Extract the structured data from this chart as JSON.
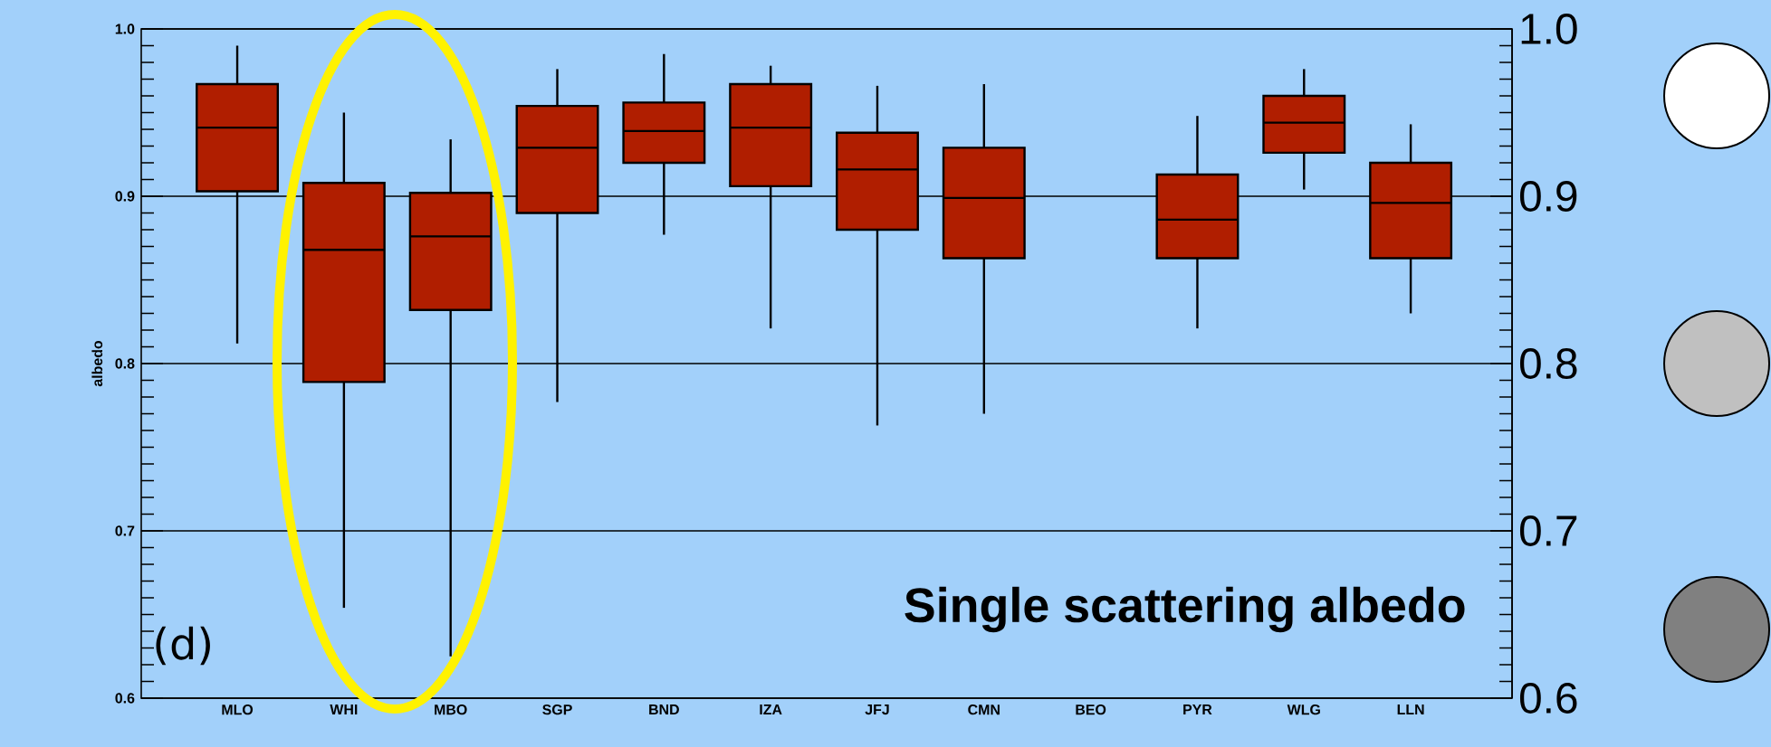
{
  "chart_data": {
    "type": "box",
    "ylabel": "albedo",
    "color": "#b01e00",
    "grid": "y",
    "categories": [
      "MLO",
      "WHI",
      "MBO",
      "SGP",
      "BND",
      "IZA",
      "JFJ",
      "CMN",
      "BEO",
      "PYR",
      "WLG",
      "LLN"
    ],
    "boxes": [
      {
        "low": 0.812,
        "q1": 0.903,
        "median": 0.941,
        "q3": 0.967,
        "high": 0.99
      },
      {
        "low": 0.654,
        "q1": 0.789,
        "median": 0.868,
        "q3": 0.908,
        "high": 0.95
      },
      {
        "low": 0.625,
        "q1": 0.832,
        "median": 0.876,
        "q3": 0.902,
        "high": 0.934
      },
      {
        "low": 0.777,
        "q1": 0.89,
        "median": 0.929,
        "q3": 0.954,
        "high": 0.976
      },
      {
        "low": 0.877,
        "q1": 0.92,
        "median": 0.939,
        "q3": 0.956,
        "high": 0.985
      },
      {
        "low": 0.821,
        "q1": 0.906,
        "median": 0.941,
        "q3": 0.967,
        "high": 0.978
      },
      {
        "low": 0.763,
        "q1": 0.88,
        "median": 0.916,
        "q3": 0.938,
        "high": 0.966
      },
      {
        "low": 0.77,
        "q1": 0.863,
        "median": 0.899,
        "q3": 0.929,
        "high": 0.967
      },
      null,
      {
        "low": 0.821,
        "q1": 0.863,
        "median": 0.886,
        "q3": 0.913,
        "high": 0.948
      },
      {
        "low": 0.904,
        "q1": 0.926,
        "median": 0.944,
        "q3": 0.96,
        "high": 0.976
      },
      {
        "low": 0.83,
        "q1": 0.863,
        "median": 0.896,
        "q3": 0.92,
        "high": 0.943
      }
    ],
    "ylim": [
      0.6,
      1.0
    ],
    "yticks": [
      0.6,
      0.7,
      0.8,
      0.9,
      {
        "value": 1,
        "label": "1.0"
      }
    ],
    "y2lim": [
      0.6,
      1.0
    ],
    "y2ticks": [
      0.6,
      0.7,
      0.8,
      0.9,
      {
        "value": 1,
        "label": "1.0"
      }
    ],
    "annotations": [
      "(d)",
      "Single scattering albedo"
    ]
  }
}
